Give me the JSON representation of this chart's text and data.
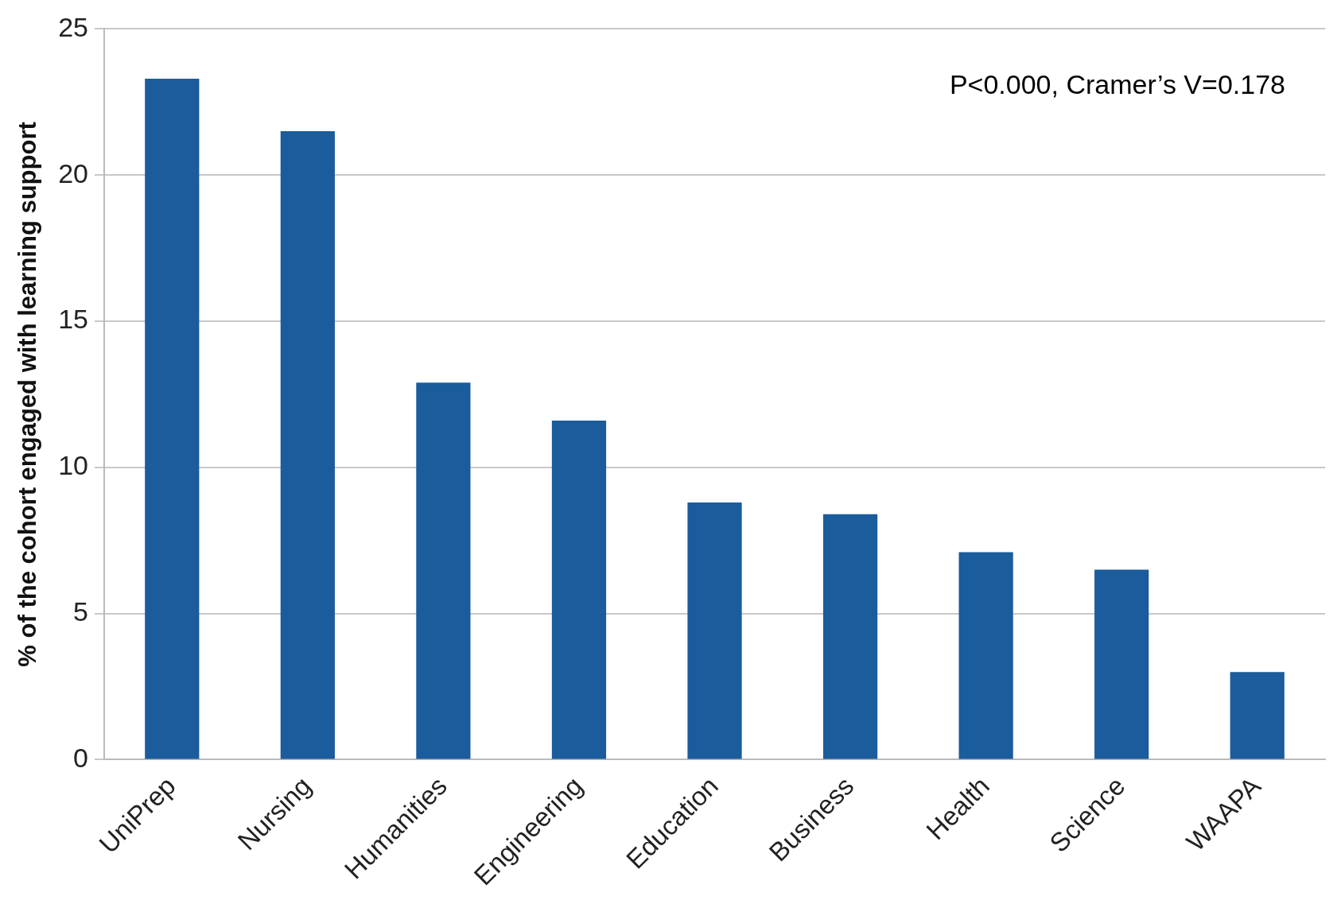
{
  "chart_data": {
    "type": "bar",
    "ylabel": "% of the cohort engaged with learning support",
    "categories": [
      "UniPrep",
      "Nursing",
      "Humanities",
      "Engineering",
      "Education",
      "Business",
      "Health",
      "Science",
      "WAAPA"
    ],
    "values": [
      23.3,
      21.5,
      12.9,
      11.6,
      8.8,
      8.4,
      7.1,
      6.5,
      3.0
    ],
    "color": "#1a5c9c",
    "ylim": [
      0,
      25
    ],
    "yticks": [
      0,
      5,
      10,
      15,
      20,
      25
    ],
    "grid": "y",
    "legend": false,
    "annotations": [
      "P<0.000, Cramer’s V=0.178"
    ]
  }
}
